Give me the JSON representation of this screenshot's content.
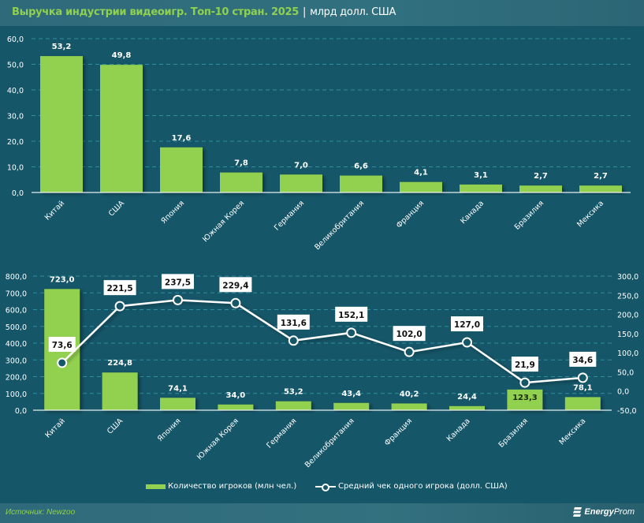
{
  "header": {
    "title": "Выручка индустрии видеоигр. Топ-10 стран. 2025",
    "separator": "|",
    "unit": "млрд долл. США"
  },
  "footer": {
    "source": "Источник: Newzoo",
    "logo_bold": "Energy",
    "logo_light": "Prom"
  },
  "colors": {
    "background": "#155668",
    "bar": "#92d050",
    "line": "#ffffff",
    "title": "#8fd14f",
    "grid": "#2f8ea0"
  },
  "legend": {
    "bar_label": "Количество игроков (млн чел.)",
    "line_label": "Средний чек одного игрока (долл. США)"
  },
  "chart_data": [
    {
      "type": "bar",
      "title": "Выручка индустрии видеоигр. Топ-10 стран. 2025",
      "ylabel": "млрд долл. США",
      "xlabel": "",
      "categories": [
        "Китай",
        "США",
        "Япония",
        "Южная Корея",
        "Германия",
        "Великобритания",
        "Франция",
        "Канада",
        "Бразилия",
        "Мексика"
      ],
      "values": [
        53.2,
        49.8,
        17.6,
        7.8,
        7.0,
        6.6,
        4.1,
        3.1,
        2.7,
        2.7
      ],
      "value_labels": [
        "53,2",
        "49,8",
        "17,6",
        "7,8",
        "7,0",
        "6,6",
        "4,1",
        "3,1",
        "2,7",
        "2,7"
      ],
      "ylim": [
        0,
        60
      ],
      "yticks": [
        "0,0",
        "10,0",
        "20,0",
        "30,0",
        "40,0",
        "50,0",
        "60,0"
      ],
      "grid": true
    },
    {
      "type": "bar+line",
      "categories": [
        "Китай",
        "США",
        "Япония",
        "Южная Корея",
        "Германия",
        "Великобритания",
        "Франция",
        "Канада",
        "Бразилия",
        "Мексика"
      ],
      "series": [
        {
          "name": "Количество игроков (млн чел.)",
          "type": "bar",
          "axis": "left",
          "values": [
            723.0,
            224.8,
            74.1,
            34.0,
            53.2,
            43.4,
            40.2,
            24.4,
            123.3,
            78.1
          ],
          "value_labels": [
            "723,0",
            "224,8",
            "74,1",
            "34,0",
            "53,2",
            "43,4",
            "40,2",
            "24,4",
            "123,3",
            "78,1"
          ]
        },
        {
          "name": "Средний чек одного игрока (долл. США)",
          "type": "line",
          "axis": "right",
          "values": [
            73.6,
            221.5,
            237.5,
            229.4,
            131.6,
            152.1,
            102.0,
            127.0,
            21.9,
            34.6
          ],
          "value_labels": [
            "73,6",
            "221,5",
            "237,5",
            "229,4",
            "131,6",
            "152,1",
            "102,0",
            "127,0",
            "21,9",
            "34,6"
          ]
        }
      ],
      "ylim_left": [
        0,
        800
      ],
      "yticks_left": [
        "0,0",
        "100,0",
        "200,0",
        "300,0",
        "400,0",
        "500,0",
        "600,0",
        "700,0",
        "800,0"
      ],
      "ylim_right": [
        -50,
        300
      ],
      "yticks_right": [
        "-50,0",
        "0,0",
        "50,0",
        "100,0",
        "150,0",
        "200,0",
        "250,0",
        "300,0"
      ],
      "grid": true,
      "legend_position": "bottom"
    }
  ]
}
